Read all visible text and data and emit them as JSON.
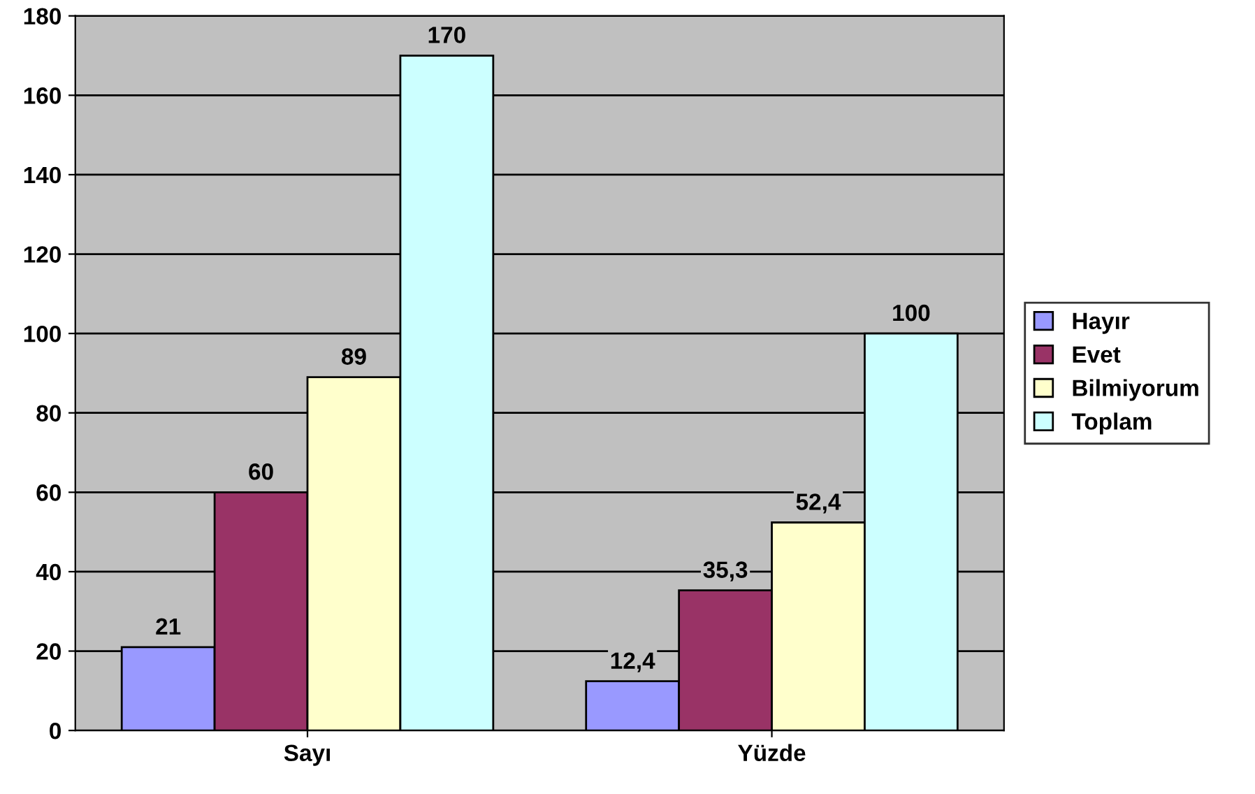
{
  "chart_data": {
    "type": "bar",
    "categories": [
      "Sayı",
      "Yüzde"
    ],
    "series": [
      {
        "name": "Hayır",
        "color": "#9999ff",
        "values": [
          21,
          12.4
        ],
        "value_labels": [
          "21",
          "12,4"
        ]
      },
      {
        "name": "Evet",
        "color": "#993366",
        "values": [
          60,
          35.3
        ],
        "value_labels": [
          "60",
          "35,3"
        ]
      },
      {
        "name": "Bilmiyorum",
        "color": "#ffffcc",
        "values": [
          89,
          52.4
        ],
        "value_labels": [
          "89",
          "52,4"
        ]
      },
      {
        "name": "Toplam",
        "color": "#ccffff",
        "values": [
          170,
          100
        ],
        "value_labels": [
          "170",
          "100"
        ]
      }
    ],
    "ylim": [
      0,
      180
    ],
    "yticks": [
      0,
      20,
      40,
      60,
      80,
      100,
      120,
      140,
      160,
      180
    ],
    "grid": "y",
    "legend": "right"
  }
}
